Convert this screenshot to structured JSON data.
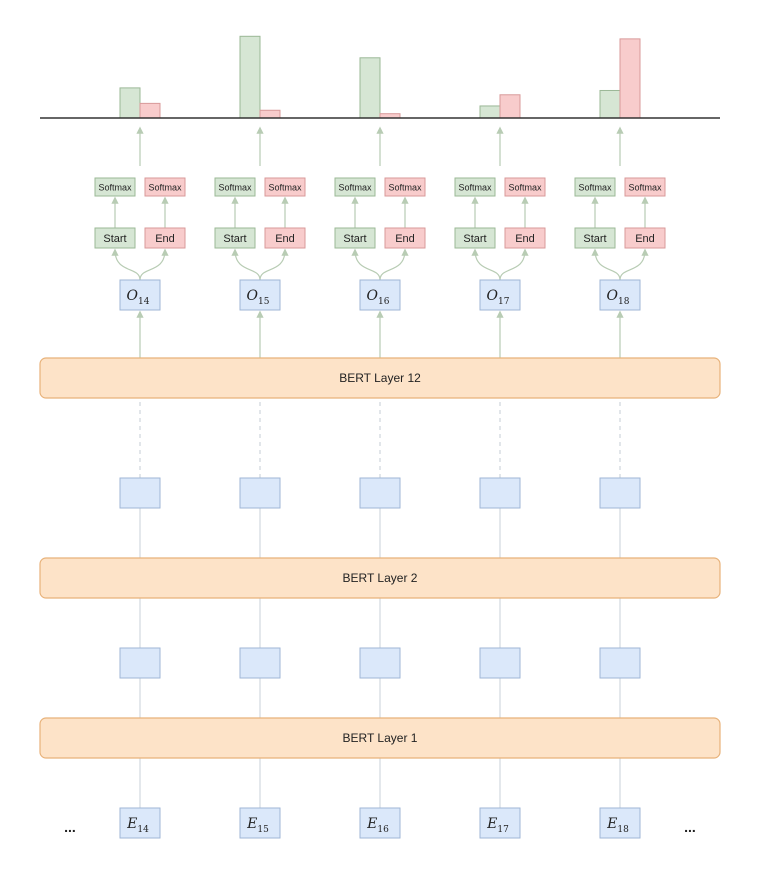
{
  "layers": [
    {
      "id": "layer12",
      "label": "BERT Layer 12"
    },
    {
      "id": "layer2",
      "label": "BERT Layer 2"
    },
    {
      "id": "layer1",
      "label": "BERT Layer 1"
    }
  ],
  "columns": [
    {
      "index": "14",
      "start_prob": 0.35,
      "end_prob": 0.17
    },
    {
      "index": "15",
      "start_prob": 0.95,
      "end_prob": 0.09
    },
    {
      "index": "16",
      "start_prob": 0.7,
      "end_prob": 0.05
    },
    {
      "index": "17",
      "start_prob": 0.14,
      "end_prob": 0.27
    },
    {
      "index": "18",
      "start_prob": 0.32,
      "end_prob": 0.92
    }
  ],
  "output_symbol": "O",
  "embedding_symbol": "E",
  "start_label": "Start",
  "end_label": "End",
  "softmax_label": "Softmax",
  "ellipsis": "...",
  "colors": {
    "layer_fill": "#fde3c8",
    "layer_stroke": "#e8b27a",
    "token_fill": "#dbe8fa",
    "token_stroke": "#9fb6d6",
    "start_fill": "#d6e6d4",
    "start_stroke": "#9bb896",
    "end_fill": "#f8cccc",
    "end_stroke": "#d89a9a",
    "arrow": "#b8ccb4",
    "dashed": "#c4ccd4"
  }
}
